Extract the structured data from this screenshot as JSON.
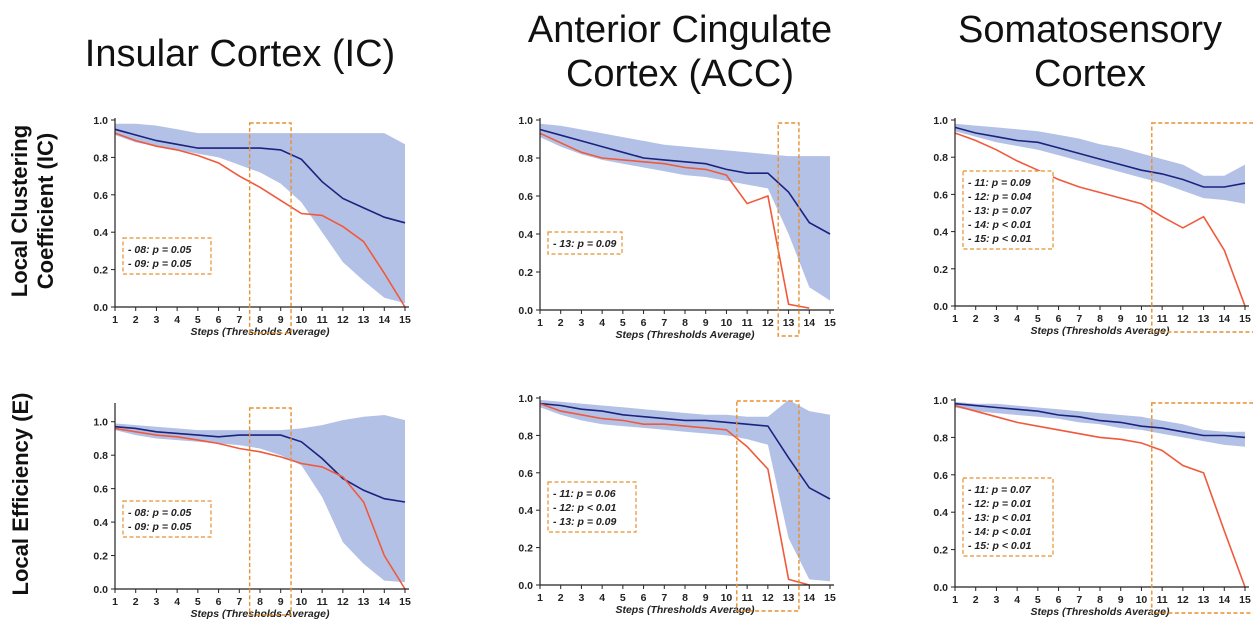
{
  "titles": {
    "insular": "Insular Cortex (IC)",
    "acc_line1": "Anterior Cingulate",
    "acc_line2": "Cortex (ACC)",
    "soma_line1": "Somatosensory",
    "soma_line2": "Cortex"
  },
  "row_labels": {
    "clustering_line1": "Local Clustering",
    "clustering_line2": "Coefficient (IC)",
    "efficiency": "Local Efficiency (E)"
  },
  "colors": {
    "band": "#b4c1e6",
    "group_line": "#1a237e",
    "individual_line": "#ef5a3c",
    "highlight_box": "#e8902e",
    "axis": "#222222"
  },
  "chart_data": [
    {
      "id": "ic-clustering",
      "type": "line",
      "xlabel": "Steps (Thresholds Average)",
      "ylabel": "",
      "x": [
        1,
        2,
        3,
        4,
        5,
        6,
        7,
        8,
        9,
        10,
        11,
        12,
        13,
        14,
        15
      ],
      "xlim": [
        1,
        15
      ],
      "ylim": [
        0,
        1
      ],
      "yticks": [
        "0.0",
        "0.2",
        "0.4",
        "0.6",
        "0.8",
        "1.0"
      ],
      "band_upper": [
        0.98,
        0.98,
        0.97,
        0.95,
        0.93,
        0.93,
        0.93,
        0.93,
        0.93,
        0.93,
        0.93,
        0.93,
        0.93,
        0.93,
        0.87
      ],
      "band_lower": [
        0.92,
        0.88,
        0.86,
        0.84,
        0.82,
        0.8,
        0.76,
        0.72,
        0.66,
        0.56,
        0.4,
        0.24,
        0.14,
        0.05,
        0.02
      ],
      "series": [
        {
          "values": [
            0.95,
            0.92,
            0.89,
            0.87,
            0.85,
            0.85,
            0.85,
            0.85,
            0.84,
            0.79,
            0.67,
            0.58,
            0.53,
            0.48,
            0.45
          ]
        },
        {
          "values": [
            0.93,
            0.89,
            0.86,
            0.84,
            0.81,
            0.77,
            0.7,
            0.64,
            0.57,
            0.5,
            0.49,
            0.43,
            0.35,
            0.18,
            0.0
          ]
        }
      ],
      "highlight_steps": [
        8,
        9
      ],
      "annotations": [
        "- 08: p = 0.05",
        "- 09: p = 0.05"
      ]
    },
    {
      "id": "acc-clustering",
      "type": "line",
      "xlabel": "Steps (Thresholds Average)",
      "ylabel": "",
      "x": [
        1,
        2,
        3,
        4,
        5,
        6,
        7,
        8,
        9,
        10,
        11,
        12,
        13,
        14,
        15
      ],
      "xlim": [
        1,
        15
      ],
      "ylim": [
        0,
        1
      ],
      "yticks": [
        "0.0",
        "0.2",
        "0.4",
        "0.6",
        "0.8",
        "1.0"
      ],
      "band_upper": [
        0.98,
        0.97,
        0.95,
        0.93,
        0.91,
        0.89,
        0.87,
        0.86,
        0.85,
        0.84,
        0.83,
        0.82,
        0.81,
        0.81,
        0.81
      ],
      "band_lower": [
        0.91,
        0.86,
        0.82,
        0.79,
        0.77,
        0.75,
        0.73,
        0.71,
        0.7,
        0.68,
        0.66,
        0.64,
        0.4,
        0.12,
        0.05
      ],
      "series": [
        {
          "values": [
            0.95,
            0.92,
            0.89,
            0.86,
            0.83,
            0.8,
            0.79,
            0.78,
            0.77,
            0.74,
            0.72,
            0.72,
            0.62,
            0.46,
            0.4
          ]
        },
        {
          "values": [
            0.93,
            0.88,
            0.83,
            0.8,
            0.79,
            0.78,
            0.77,
            0.75,
            0.74,
            0.71,
            0.56,
            0.6,
            0.03,
            0.01,
            null
          ]
        }
      ],
      "highlight_steps": [
        13
      ],
      "annotations": [
        "- 13: p = 0.09"
      ]
    },
    {
      "id": "soma-clustering",
      "type": "line",
      "xlabel": "Steps (Thresholds Average)",
      "ylabel": "",
      "x": [
        1,
        2,
        3,
        4,
        5,
        6,
        7,
        8,
        9,
        10,
        11,
        12,
        13,
        14,
        15
      ],
      "xlim": [
        1,
        15
      ],
      "ylim": [
        0,
        1
      ],
      "yticks": [
        "0.0",
        "0.2",
        "0.4",
        "0.6",
        "0.8",
        "1.0"
      ],
      "band_upper": [
        0.98,
        0.97,
        0.96,
        0.95,
        0.94,
        0.92,
        0.9,
        0.87,
        0.85,
        0.82,
        0.79,
        0.76,
        0.7,
        0.7,
        0.76
      ],
      "band_lower": [
        0.94,
        0.91,
        0.88,
        0.86,
        0.84,
        0.81,
        0.78,
        0.75,
        0.72,
        0.69,
        0.66,
        0.62,
        0.58,
        0.57,
        0.55
      ],
      "series": [
        {
          "values": [
            0.96,
            0.93,
            0.91,
            0.89,
            0.88,
            0.85,
            0.82,
            0.79,
            0.76,
            0.73,
            0.71,
            0.68,
            0.64,
            0.64,
            0.66
          ]
        },
        {
          "values": [
            0.93,
            0.89,
            0.84,
            0.78,
            0.73,
            0.68,
            0.64,
            0.61,
            0.58,
            0.55,
            0.48,
            0.42,
            0.48,
            0.3,
            0.0
          ]
        }
      ],
      "highlight_steps": [
        11,
        12,
        13,
        14,
        15
      ],
      "annotations": [
        "- 11: p = 0.09",
        "- 12: p = 0.04",
        "- 13: p = 0.07",
        "- 14: p < 0.01",
        "- 15: p < 0.01"
      ]
    },
    {
      "id": "ic-efficiency",
      "type": "line",
      "xlabel": "Steps (Thresholds Average)",
      "ylabel": "",
      "x": [
        1,
        2,
        3,
        4,
        5,
        6,
        7,
        8,
        9,
        10,
        11,
        12,
        13,
        14,
        15
      ],
      "xlim": [
        1,
        15
      ],
      "ylim": [
        0,
        1.1
      ],
      "yticks": [
        "0.0",
        "0.2",
        "0.4",
        "0.6",
        "0.8",
        "1.0"
      ],
      "band_upper": [
        0.99,
        0.98,
        0.97,
        0.96,
        0.95,
        0.95,
        0.95,
        0.95,
        0.95,
        0.96,
        0.98,
        1.01,
        1.03,
        1.04,
        1.01
      ],
      "band_lower": [
        0.95,
        0.92,
        0.9,
        0.89,
        0.88,
        0.87,
        0.86,
        0.84,
        0.8,
        0.74,
        0.55,
        0.28,
        0.15,
        0.05,
        0.04
      ],
      "series": [
        {
          "values": [
            0.97,
            0.96,
            0.94,
            0.93,
            0.92,
            0.91,
            0.92,
            0.92,
            0.92,
            0.88,
            0.78,
            0.66,
            0.59,
            0.54,
            0.52
          ]
        },
        {
          "values": [
            0.96,
            0.94,
            0.92,
            0.91,
            0.89,
            0.87,
            0.84,
            0.82,
            0.79,
            0.75,
            0.73,
            0.67,
            0.52,
            0.2,
            0.0
          ]
        }
      ],
      "highlight_steps": [
        8,
        9
      ],
      "annotations": [
        "- 08: p = 0.05",
        "- 09: p = 0.05"
      ]
    },
    {
      "id": "acc-efficiency",
      "type": "line",
      "xlabel": "Steps (Thresholds Average)",
      "ylabel": "",
      "x": [
        1,
        2,
        3,
        4,
        5,
        6,
        7,
        8,
        9,
        10,
        11,
        12,
        13,
        14,
        15
      ],
      "xlim": [
        1,
        15
      ],
      "ylim": [
        0,
        1
      ],
      "yticks": [
        "0.0",
        "0.2",
        "0.4",
        "0.6",
        "0.8",
        "1.0"
      ],
      "band_upper": [
        0.99,
        0.98,
        0.97,
        0.96,
        0.95,
        0.94,
        0.93,
        0.92,
        0.91,
        0.91,
        0.9,
        0.9,
        0.99,
        0.93,
        0.91
      ],
      "band_lower": [
        0.95,
        0.91,
        0.88,
        0.86,
        0.85,
        0.84,
        0.83,
        0.82,
        0.81,
        0.8,
        0.78,
        0.75,
        0.25,
        0.03,
        0.02
      ],
      "series": [
        {
          "values": [
            0.97,
            0.96,
            0.94,
            0.93,
            0.91,
            0.9,
            0.89,
            0.88,
            0.88,
            0.87,
            0.86,
            0.85,
            0.68,
            0.52,
            0.46
          ]
        },
        {
          "values": [
            0.97,
            0.93,
            0.91,
            0.89,
            0.88,
            0.86,
            0.86,
            0.85,
            0.84,
            0.83,
            0.74,
            0.62,
            0.03,
            0.0,
            null
          ]
        }
      ],
      "highlight_steps": [
        11,
        12,
        13
      ],
      "annotations": [
        "- 11: p = 0.06",
        "- 12: p < 0.01",
        "- 13: p = 0.09"
      ]
    },
    {
      "id": "soma-efficiency",
      "type": "line",
      "xlabel": "Steps (Thresholds Average)",
      "ylabel": "",
      "x": [
        1,
        2,
        3,
        4,
        5,
        6,
        7,
        8,
        9,
        10,
        11,
        12,
        13,
        14,
        15
      ],
      "xlim": [
        1,
        15
      ],
      "ylim": [
        0,
        1
      ],
      "yticks": [
        "0.0",
        "0.2",
        "0.4",
        "0.6",
        "0.8",
        "1.0"
      ],
      "band_upper": [
        0.99,
        0.98,
        0.98,
        0.97,
        0.96,
        0.95,
        0.94,
        0.93,
        0.92,
        0.91,
        0.89,
        0.87,
        0.84,
        0.83,
        0.83
      ],
      "band_lower": [
        0.96,
        0.94,
        0.93,
        0.92,
        0.91,
        0.9,
        0.88,
        0.87,
        0.85,
        0.84,
        0.82,
        0.8,
        0.78,
        0.76,
        0.75
      ],
      "series": [
        {
          "values": [
            0.98,
            0.97,
            0.96,
            0.95,
            0.94,
            0.92,
            0.91,
            0.89,
            0.88,
            0.86,
            0.85,
            0.83,
            0.81,
            0.81,
            0.8
          ]
        },
        {
          "values": [
            0.97,
            0.94,
            0.91,
            0.88,
            0.86,
            0.84,
            0.82,
            0.8,
            0.79,
            0.77,
            0.73,
            0.65,
            0.61,
            0.3,
            0.0
          ]
        }
      ],
      "highlight_steps": [
        11,
        12,
        13,
        14,
        15
      ],
      "annotations": [
        "- 11: p = 0.07",
        "- 12: p = 0.01",
        "- 13: p < 0.01",
        "- 14: p < 0.01",
        "- 15: p < 0.01"
      ]
    }
  ]
}
